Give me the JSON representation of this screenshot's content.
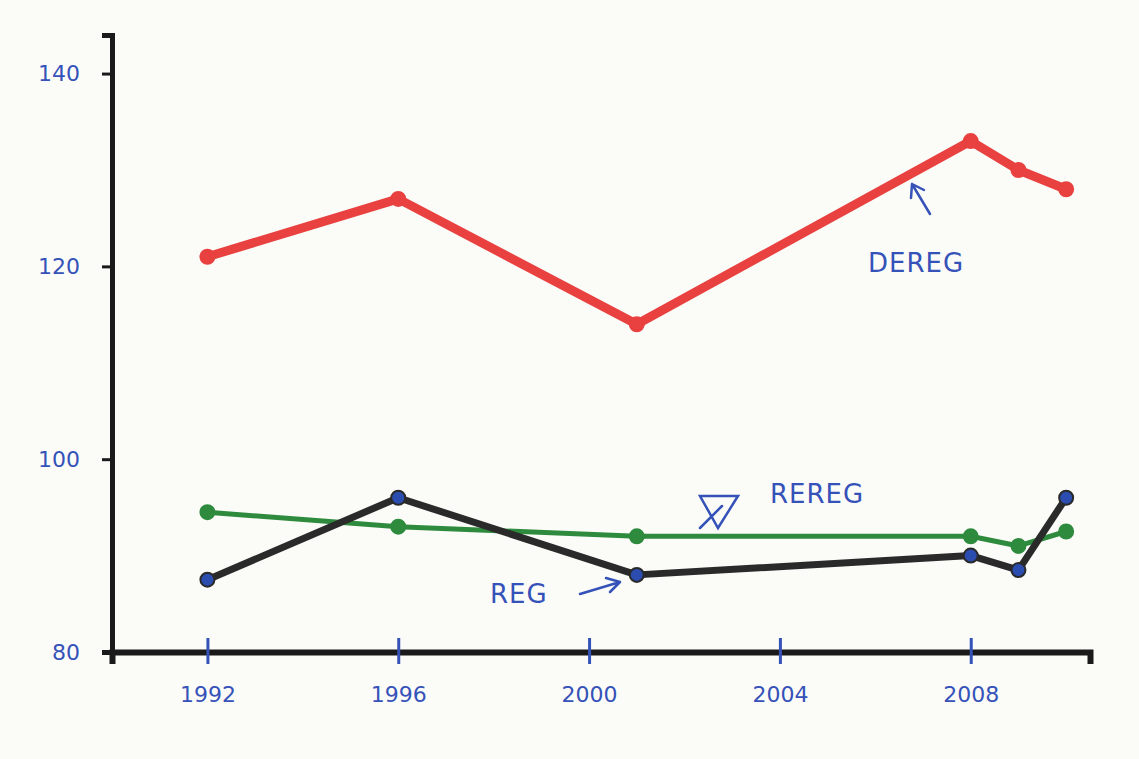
{
  "chart_data": {
    "type": "line",
    "x": [
      1992,
      1996,
      2001,
      2008,
      2009,
      2010
    ],
    "series": [
      {
        "name": "DEREG",
        "color": "#e8413f",
        "values": [
          121,
          127,
          114,
          133,
          130,
          128
        ]
      },
      {
        "name": "REREG",
        "color": "#2e8b3e",
        "values": [
          94.5,
          93,
          92,
          92,
          91,
          92.5
        ]
      },
      {
        "name": "REG",
        "color": "#2a2a2a",
        "values": [
          87.5,
          96,
          88,
          90,
          88.5,
          96
        ]
      }
    ],
    "xlim": [
      1990,
      2010.5
    ],
    "ylim": [
      80,
      144
    ],
    "xticks": [
      1992,
      1996,
      2000,
      2004,
      2008
    ],
    "yticks": [
      80,
      100,
      120,
      140
    ],
    "grid": false,
    "marker": "circle"
  }
}
